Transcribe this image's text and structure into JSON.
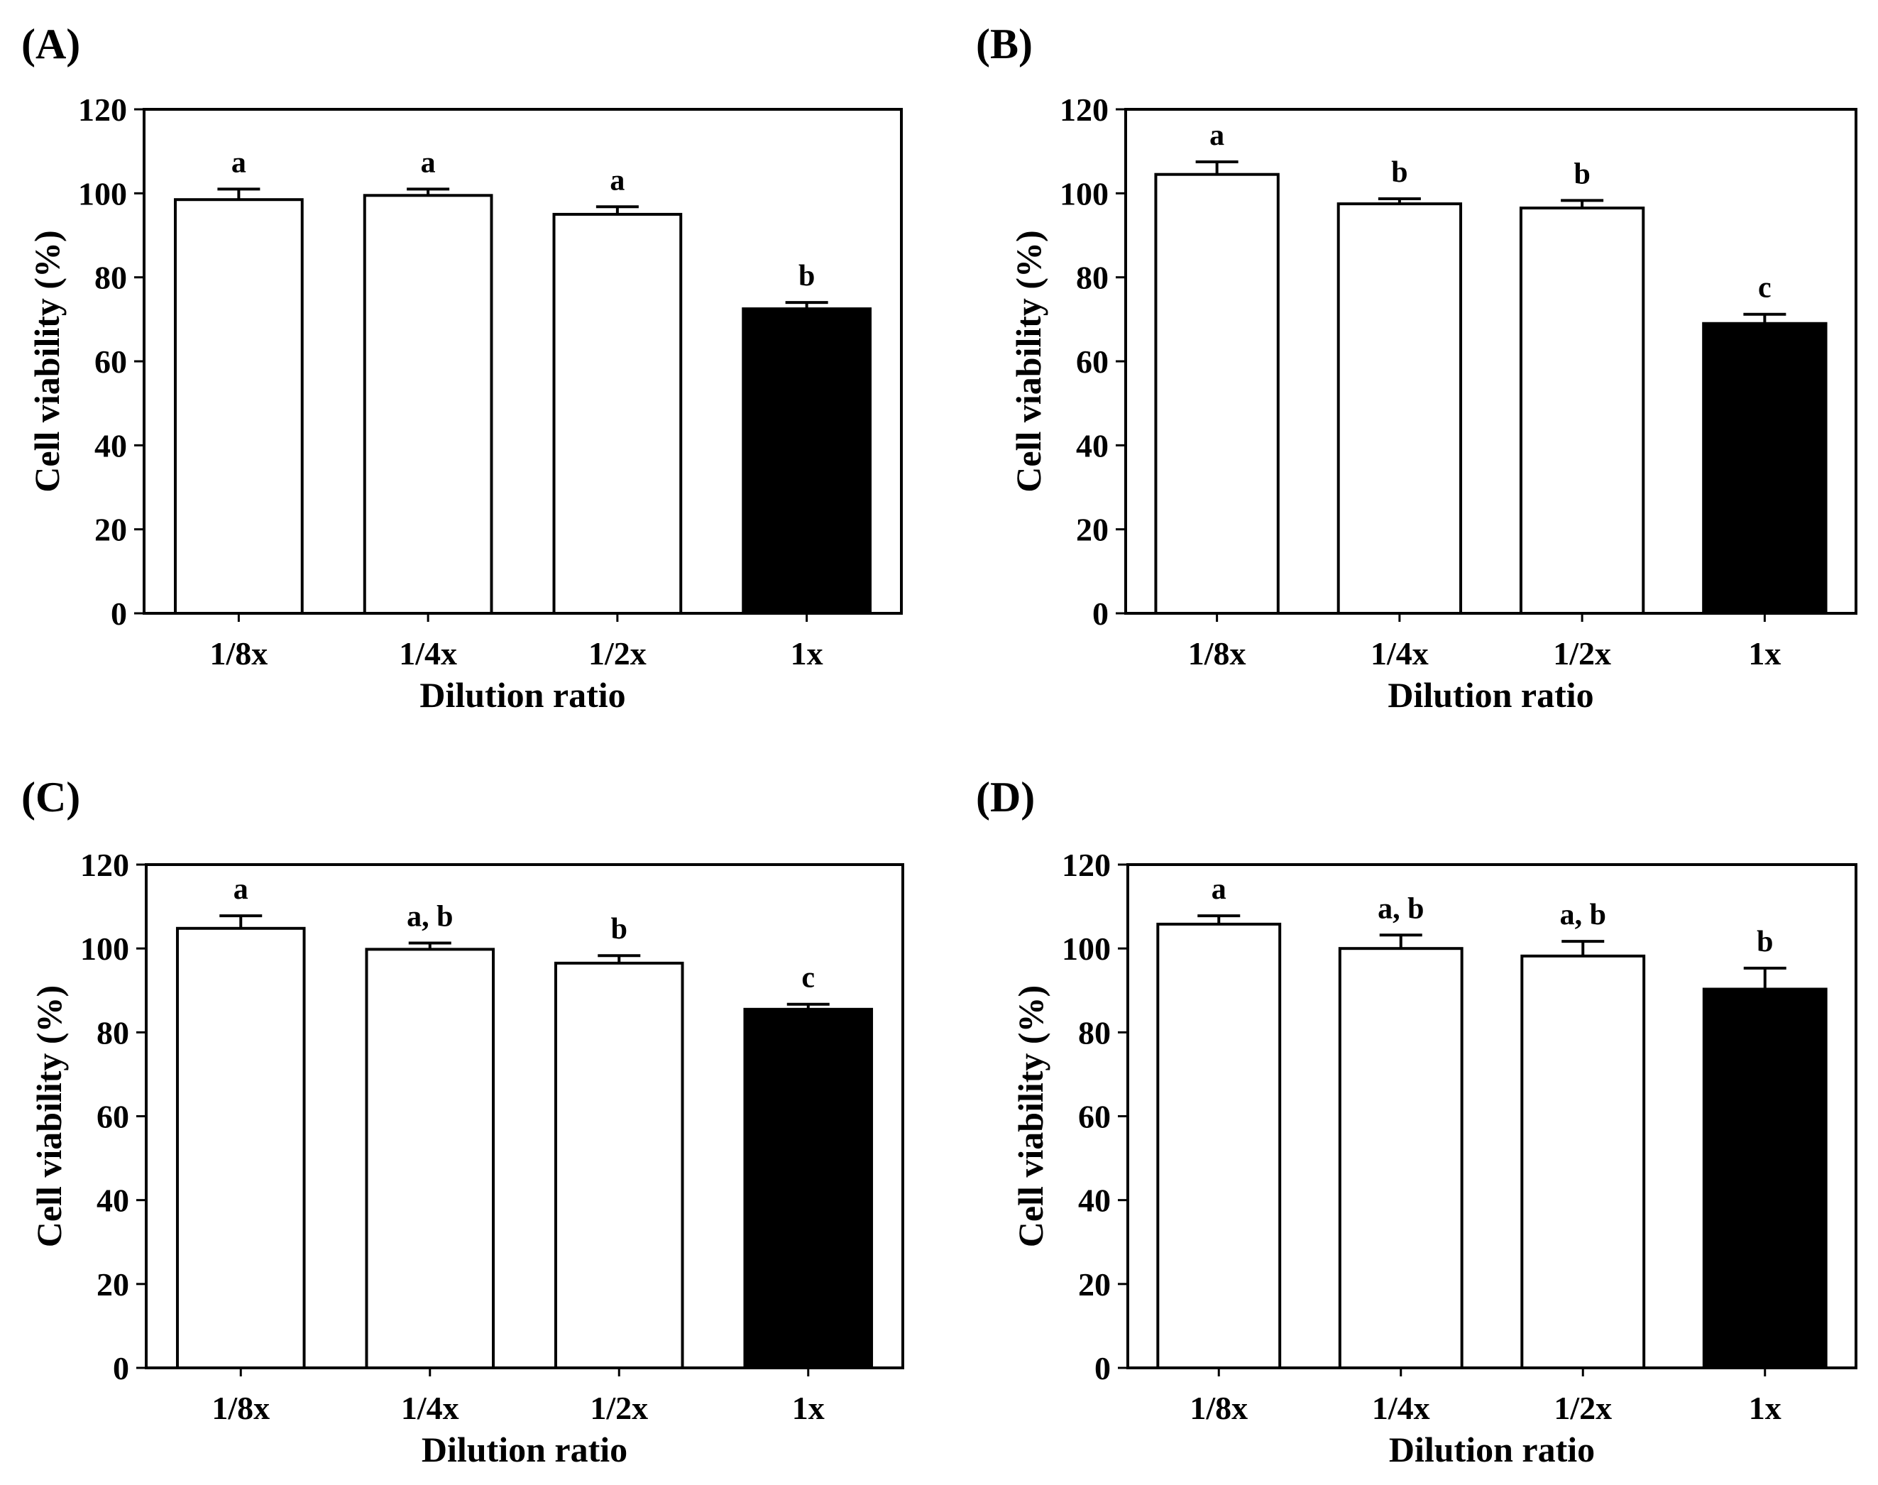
{
  "colors": {
    "bar_default": "#ffffff",
    "bar_highlight": "#000000",
    "stroke": "#000000"
  },
  "chart_data": [
    {
      "type": "bar",
      "panel_label": "(A)",
      "categories": [
        "1/8x",
        "1/4x",
        "1/2x",
        "1x"
      ],
      "values": [
        98.5,
        99.5,
        95,
        72.5
      ],
      "errors": [
        2.5,
        1.5,
        1.8,
        1.5
      ],
      "significance": [
        "a",
        "a",
        "a",
        "b"
      ],
      "fills": [
        "white",
        "white",
        "white",
        "black"
      ],
      "xlabel": "Dilution ratio",
      "ylabel": "Cell viability (%)",
      "ylim": [
        0,
        120
      ],
      "yticks": [
        0,
        20,
        40,
        60,
        80,
        100,
        120
      ]
    },
    {
      "type": "bar",
      "panel_label": "(B)",
      "categories": [
        "1/8x",
        "1/4x",
        "1/2x",
        "1x"
      ],
      "values": [
        104.5,
        97.5,
        96.5,
        69
      ],
      "errors": [
        3,
        1.2,
        1.8,
        2.2
      ],
      "significance": [
        "a",
        "b",
        "b",
        "c"
      ],
      "fills": [
        "white",
        "white",
        "white",
        "black"
      ],
      "xlabel": "Dilution ratio",
      "ylabel": "Cell viability (%)",
      "ylim": [
        0,
        120
      ],
      "yticks": [
        0,
        20,
        40,
        60,
        80,
        100,
        120
      ]
    },
    {
      "type": "bar",
      "panel_label": "(C)",
      "categories": [
        "1/8x",
        "1/4x",
        "1/2x",
        "1x"
      ],
      "values": [
        104.8,
        99.8,
        96.5,
        85.5
      ],
      "errors": [
        3,
        1.5,
        1.8,
        1.2
      ],
      "significance": [
        "a",
        "a, b",
        "b",
        "c"
      ],
      "fills": [
        "white",
        "white",
        "white",
        "black"
      ],
      "xlabel": "Dilution ratio",
      "ylabel": "Cell viability (%)",
      "ylim": [
        0,
        120
      ],
      "yticks": [
        0,
        20,
        40,
        60,
        80,
        100,
        120
      ]
    },
    {
      "type": "bar",
      "panel_label": "(D)",
      "categories": [
        "1/8x",
        "1/4x",
        "1/2x",
        "1x"
      ],
      "values": [
        105.8,
        100,
        98.2,
        90.3
      ],
      "errors": [
        2,
        3.2,
        3.5,
        5
      ],
      "significance": [
        "a",
        "a, b",
        "a, b",
        "b"
      ],
      "fills": [
        "white",
        "white",
        "white",
        "black"
      ],
      "xlabel": "Dilution ratio",
      "ylabel": "Cell viability (%)",
      "ylim": [
        0,
        120
      ],
      "yticks": [
        0,
        20,
        40,
        60,
        80,
        100,
        120
      ]
    }
  ]
}
